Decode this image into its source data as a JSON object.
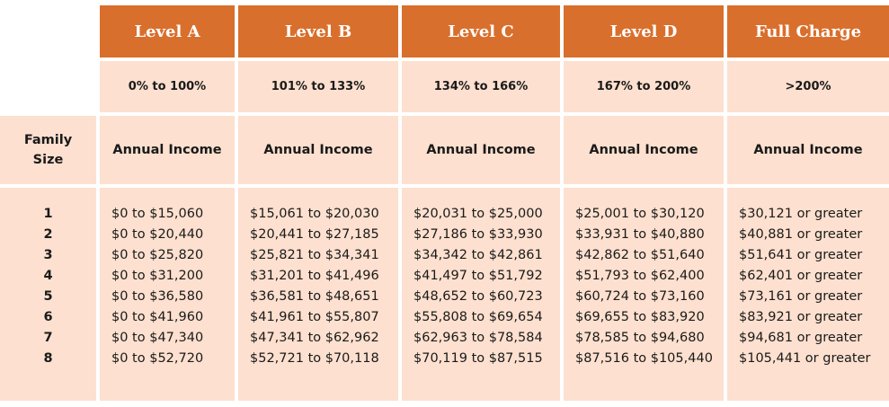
{
  "levels": [
    {
      "name": "Level A",
      "range": "0% to 100%",
      "income_label": "Annual Income",
      "values": [
        "$0 to $15,060",
        "$0 to $20,440",
        "$0 to $25,820",
        "$0 to $31,200",
        "$0 to $36,580",
        "$0 to $41,960",
        "$0 to $47,340",
        "$0 to $52,720"
      ]
    },
    {
      "name": "Level B",
      "range": "101% to 133%",
      "income_label": "Annual Income",
      "values": [
        "$15,061 to $20,030",
        "$20,441 to $27,185",
        "$25,821 to $34,341",
        "$31,201 to $41,496",
        "$36,581 to $48,651",
        "$41,961 to $55,807",
        "$47,341 to $62,962",
        "$52,721 to $70,118"
      ]
    },
    {
      "name": "Level C",
      "range": "134% to 166%",
      "income_label": "Annual Income",
      "values": [
        "$20,031 to $25,000",
        "$27,186 to $33,930",
        "$34,342 to $42,861",
        "$41,497 to $51,792",
        "$48,652 to $60,723",
        "$55,808 to $69,654",
        "$62,963 to $78,584",
        "$70,119 to $87,515"
      ]
    },
    {
      "name": "Level D",
      "range": "167% to 200%",
      "income_label": "Annual Income",
      "values": [
        "$25,001 to $30,120",
        "$33,931 to $40,880",
        "$42,862 to $51,640",
        "$51,793 to $62,400",
        "$60,724 to $73,160",
        "$69,655 to $83,920",
        "$78,585 to $94,680",
        "$87,516 to $105,440"
      ]
    },
    {
      "name": "Full Charge",
      "range": ">200%",
      "income_label": "Annual Income",
      "values": [
        "$30,121 or greater",
        "$40,881 or greater",
        "$51,641 or greater",
        "$62,401 or greater",
        "$73,161 or greater",
        "$83,921 or greater",
        "$94,681 or greater",
        "$105,441 or greater"
      ]
    }
  ],
  "family": {
    "label_line1": "Family",
    "label_line2": "Size",
    "sizes": [
      "1",
      "2",
      "3",
      "4",
      "5",
      "6",
      "7",
      "8"
    ]
  },
  "colors": {
    "header": "#d96f2c",
    "cell": "#fde0cf",
    "grid": "#ffffff"
  }
}
